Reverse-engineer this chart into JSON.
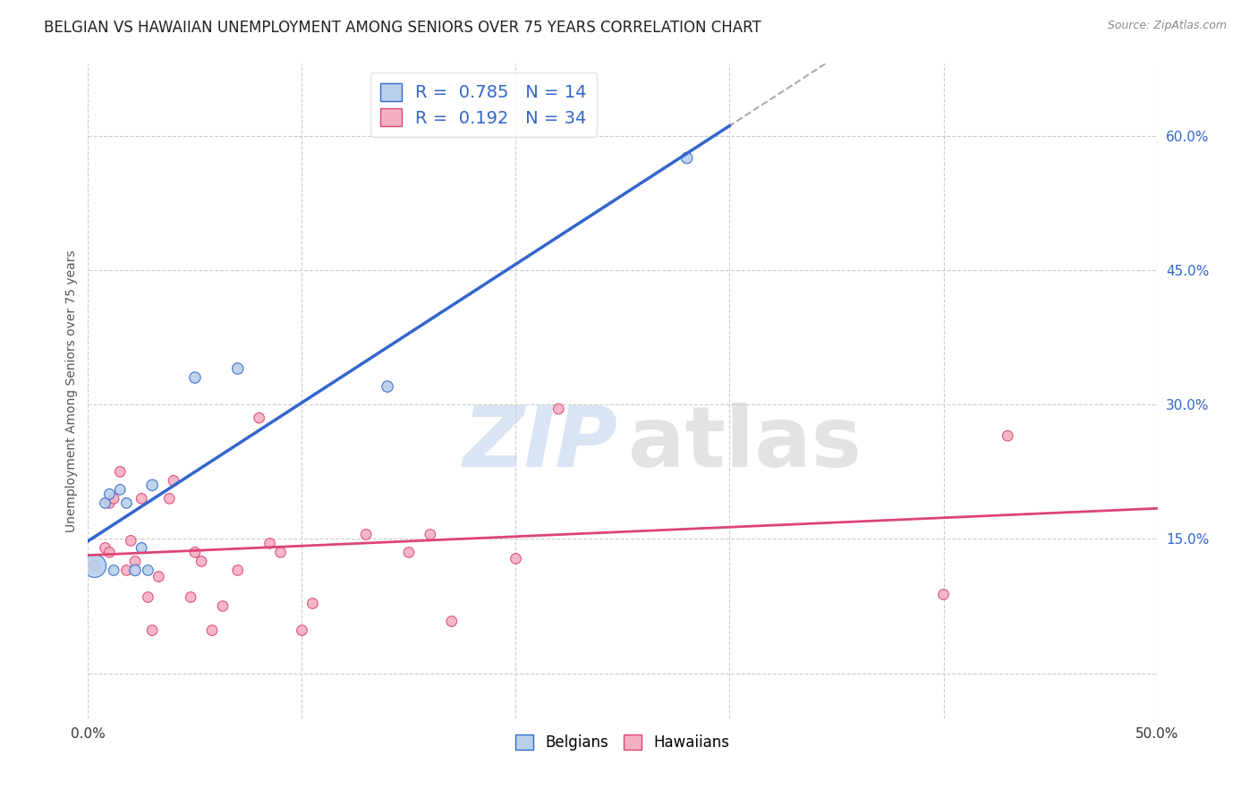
{
  "title": "BELGIAN VS HAWAIIAN UNEMPLOYMENT AMONG SENIORS OVER 75 YEARS CORRELATION CHART",
  "source": "Source: ZipAtlas.com",
  "ylabel": "Unemployment Among Seniors over 75 years",
  "xlim": [
    0,
    0.5
  ],
  "ylim": [
    -0.05,
    0.68
  ],
  "xticks": [
    0.0,
    0.1,
    0.2,
    0.3,
    0.4,
    0.5
  ],
  "yticks": [
    0.0,
    0.15,
    0.3,
    0.45,
    0.6
  ],
  "xtick_labels": [
    "0.0%",
    "",
    "",
    "",
    "",
    "50.0%"
  ],
  "ytick_labels_right": [
    "",
    "15.0%",
    "30.0%",
    "45.0%",
    "60.0%"
  ],
  "belgian_R": "0.785",
  "belgian_N": "14",
  "hawaiian_R": "0.192",
  "hawaiian_N": "34",
  "belgian_color": "#b8d0ea",
  "hawaiian_color": "#f4b0c0",
  "belgian_line_color": "#3366cc",
  "hawaiian_line_color": "#dd4477",
  "belgians_x": [
    0.003,
    0.008,
    0.01,
    0.012,
    0.015,
    0.018,
    0.022,
    0.025,
    0.028,
    0.03,
    0.05,
    0.07,
    0.14,
    0.28
  ],
  "belgians_y": [
    0.12,
    0.19,
    0.2,
    0.115,
    0.205,
    0.19,
    0.115,
    0.14,
    0.115,
    0.21,
    0.33,
    0.34,
    0.32,
    0.575
  ],
  "belgians_size": [
    350,
    70,
    70,
    70,
    70,
    70,
    80,
    70,
    70,
    80,
    80,
    80,
    80,
    80
  ],
  "hawaiians_x": [
    0.003,
    0.008,
    0.01,
    0.01,
    0.012,
    0.015,
    0.018,
    0.02,
    0.022,
    0.025,
    0.028,
    0.03,
    0.033,
    0.038,
    0.04,
    0.048,
    0.05,
    0.053,
    0.058,
    0.063,
    0.07,
    0.08,
    0.085,
    0.09,
    0.1,
    0.105,
    0.13,
    0.15,
    0.16,
    0.17,
    0.2,
    0.22,
    0.4,
    0.43
  ],
  "hawaiians_y": [
    0.12,
    0.14,
    0.135,
    0.19,
    0.195,
    0.225,
    0.115,
    0.148,
    0.125,
    0.195,
    0.085,
    0.048,
    0.108,
    0.195,
    0.215,
    0.085,
    0.135,
    0.125,
    0.048,
    0.075,
    0.115,
    0.285,
    0.145,
    0.135,
    0.048,
    0.078,
    0.155,
    0.135,
    0.155,
    0.058,
    0.128,
    0.295,
    0.088,
    0.265
  ],
  "hawaiians_size": [
    70,
    70,
    70,
    70,
    70,
    70,
    70,
    70,
    70,
    70,
    70,
    70,
    70,
    70,
    70,
    70,
    70,
    70,
    70,
    70,
    70,
    70,
    70,
    70,
    70,
    70,
    70,
    70,
    70,
    70,
    70,
    70,
    70,
    70
  ],
  "grid_color": "#cccccc",
  "background_color": "#ffffff",
  "title_fontsize": 12,
  "axis_label_fontsize": 10,
  "tick_fontsize": 11,
  "legend_fontsize": 14
}
